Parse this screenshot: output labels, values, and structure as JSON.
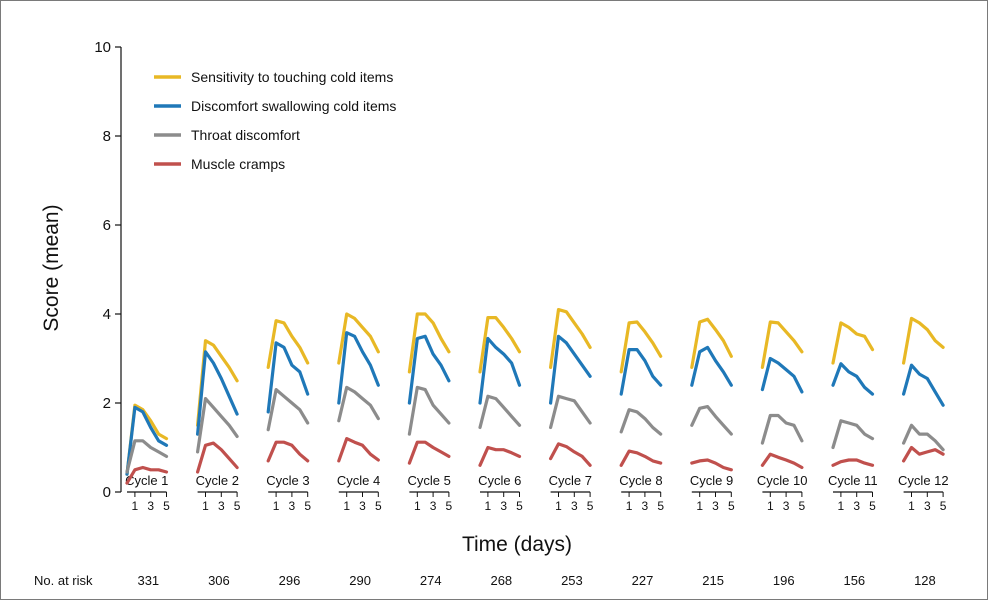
{
  "chart_data": {
    "type": "line",
    "title": "",
    "xlabel": "Time (days)",
    "ylabel": "Score (mean)",
    "ylim": [
      0,
      10
    ],
    "yticks": [
      0,
      2,
      4,
      6,
      8,
      10
    ],
    "grid": false,
    "legend_position": "top-left",
    "day_ticks": [
      "1",
      "3",
      "5"
    ],
    "cycles": [
      "Cycle 1",
      "Cycle 2",
      "Cycle 3",
      "Cycle 4",
      "Cycle 5",
      "Cycle 6",
      "Cycle 7",
      "Cycle 8",
      "Cycle 9",
      "Cycle 10",
      "Cycle 11",
      "Cycle 12"
    ],
    "risk_label": "No. at risk",
    "at_risk": [
      "331",
      "306",
      "296",
      "290",
      "274",
      "268",
      "253",
      "227",
      "215",
      "196",
      "156",
      "128"
    ],
    "series": [
      {
        "name": "Sensitivity to touching cold items",
        "color": "#e8b825",
        "values": [
          [
            0.4,
            1.95,
            1.85,
            1.6,
            1.3,
            1.2
          ],
          [
            1.5,
            3.4,
            3.3,
            3.05,
            2.8,
            2.5
          ],
          [
            2.8,
            3.85,
            3.8,
            3.5,
            3.25,
            2.9
          ],
          [
            2.9,
            4.0,
            3.9,
            3.7,
            3.5,
            3.15
          ],
          [
            2.7,
            4.0,
            4.0,
            3.8,
            3.45,
            3.15
          ],
          [
            2.7,
            3.92,
            3.92,
            3.7,
            3.45,
            3.15
          ],
          [
            2.8,
            4.1,
            4.05,
            3.8,
            3.55,
            3.25
          ],
          [
            2.7,
            3.8,
            3.82,
            3.6,
            3.35,
            3.05
          ],
          [
            2.8,
            3.82,
            3.88,
            3.65,
            3.4,
            3.05
          ],
          [
            2.8,
            3.82,
            3.8,
            3.6,
            3.4,
            3.15
          ],
          [
            2.9,
            3.8,
            3.7,
            3.55,
            3.5,
            3.2
          ],
          [
            2.9,
            3.9,
            3.8,
            3.65,
            3.4,
            3.25
          ]
        ]
      },
      {
        "name": "Discomfort swallowing cold items",
        "color": "#1f78b8",
        "values": [
          [
            0.4,
            1.9,
            1.8,
            1.45,
            1.15,
            1.05
          ],
          [
            1.3,
            3.15,
            2.9,
            2.55,
            2.15,
            1.75
          ],
          [
            1.8,
            3.35,
            3.25,
            2.85,
            2.7,
            2.2
          ],
          [
            2.0,
            3.58,
            3.5,
            3.15,
            2.85,
            2.4
          ],
          [
            2.0,
            3.45,
            3.5,
            3.1,
            2.85,
            2.5
          ],
          [
            2.0,
            3.45,
            3.25,
            3.1,
            2.9,
            2.4
          ],
          [
            2.0,
            3.5,
            3.35,
            3.1,
            2.85,
            2.6
          ],
          [
            2.2,
            3.2,
            3.2,
            2.95,
            2.6,
            2.4
          ],
          [
            2.4,
            3.15,
            3.25,
            2.95,
            2.7,
            2.4
          ],
          [
            2.3,
            3.0,
            2.9,
            2.75,
            2.6,
            2.25
          ],
          [
            2.4,
            2.88,
            2.7,
            2.6,
            2.35,
            2.2
          ],
          [
            2.2,
            2.85,
            2.65,
            2.55,
            2.25,
            1.95
          ]
        ]
      },
      {
        "name": "Throat discomfort",
        "color": "#8c8c8c",
        "values": [
          [
            0.45,
            1.15,
            1.15,
            1.0,
            0.9,
            0.8
          ],
          [
            0.9,
            2.1,
            1.9,
            1.7,
            1.5,
            1.25
          ],
          [
            1.4,
            2.3,
            2.15,
            2.0,
            1.85,
            1.55
          ],
          [
            1.6,
            2.35,
            2.25,
            2.1,
            1.95,
            1.65
          ],
          [
            1.3,
            2.35,
            2.3,
            1.95,
            1.75,
            1.55
          ],
          [
            1.45,
            2.15,
            2.1,
            1.9,
            1.7,
            1.5
          ],
          [
            1.45,
            2.15,
            2.1,
            2.05,
            1.8,
            1.55
          ],
          [
            1.35,
            1.85,
            1.8,
            1.65,
            1.45,
            1.3
          ],
          [
            1.5,
            1.88,
            1.92,
            1.7,
            1.5,
            1.3
          ],
          [
            1.1,
            1.72,
            1.72,
            1.55,
            1.5,
            1.15
          ],
          [
            1.0,
            1.6,
            1.55,
            1.5,
            1.3,
            1.2
          ],
          [
            1.1,
            1.5,
            1.3,
            1.3,
            1.15,
            0.95
          ]
        ]
      },
      {
        "name": "Muscle cramps",
        "color": "#c0504d",
        "values": [
          [
            0.2,
            0.5,
            0.55,
            0.5,
            0.5,
            0.45
          ],
          [
            0.45,
            1.05,
            1.1,
            0.95,
            0.75,
            0.55
          ],
          [
            0.7,
            1.12,
            1.12,
            1.05,
            0.85,
            0.7
          ],
          [
            0.7,
            1.2,
            1.12,
            1.05,
            0.85,
            0.72
          ],
          [
            0.65,
            1.12,
            1.12,
            1.0,
            0.9,
            0.8
          ],
          [
            0.6,
            1.0,
            0.95,
            0.95,
            0.88,
            0.8
          ],
          [
            0.75,
            1.08,
            1.02,
            0.9,
            0.8,
            0.6
          ],
          [
            0.6,
            0.92,
            0.88,
            0.8,
            0.7,
            0.65
          ],
          [
            0.65,
            0.7,
            0.72,
            0.65,
            0.55,
            0.5
          ],
          [
            0.6,
            0.85,
            0.78,
            0.72,
            0.65,
            0.55
          ],
          [
            0.6,
            0.68,
            0.72,
            0.72,
            0.65,
            0.6
          ],
          [
            0.7,
            1.0,
            0.85,
            0.9,
            0.95,
            0.85
          ]
        ]
      }
    ]
  }
}
